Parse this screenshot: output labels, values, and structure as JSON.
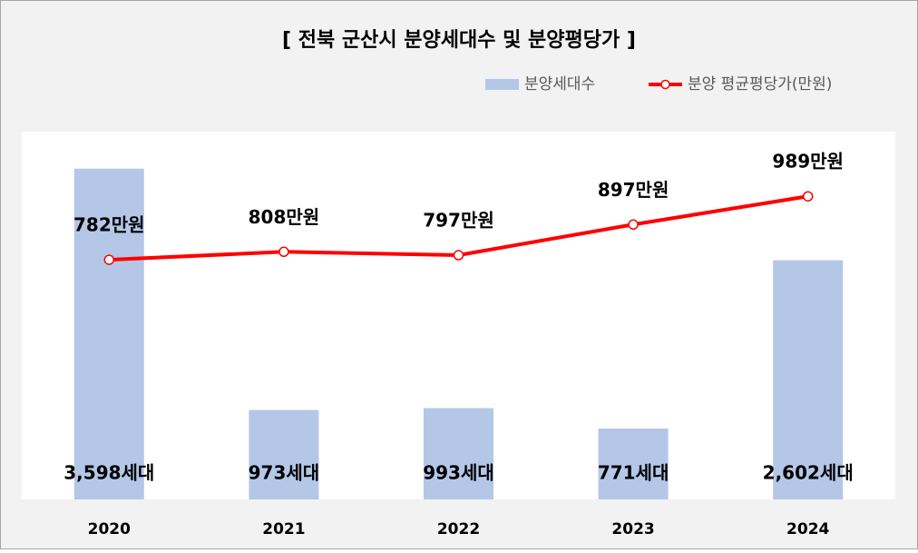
{
  "chart_data": {
    "type": "bar-line",
    "title": "[ 전북 군산시 분양세대수 및 분양평당가 ]",
    "categories": [
      "2020",
      "2021",
      "2022",
      "2023",
      "2024"
    ],
    "series": [
      {
        "name": "분양세대수",
        "type": "bar",
        "color": "#b4c7e7",
        "values": [
          3598,
          973,
          993,
          771,
          2602
        ],
        "value_labels": [
          "3,598세대",
          "973세대",
          "993세대",
          "771세대",
          "2,602세대"
        ]
      },
      {
        "name": "분양 평균평당가(만원)",
        "type": "line",
        "axis": "y2",
        "color": "#ff0000",
        "values": [
          782,
          808,
          797,
          897,
          989
        ],
        "value_labels": [
          "782만원",
          "808만원",
          "797만원",
          "897만원",
          "989만원"
        ]
      }
    ],
    "ylim": [
      0,
      4000
    ],
    "y2lim": [
      0,
      1200
    ]
  }
}
